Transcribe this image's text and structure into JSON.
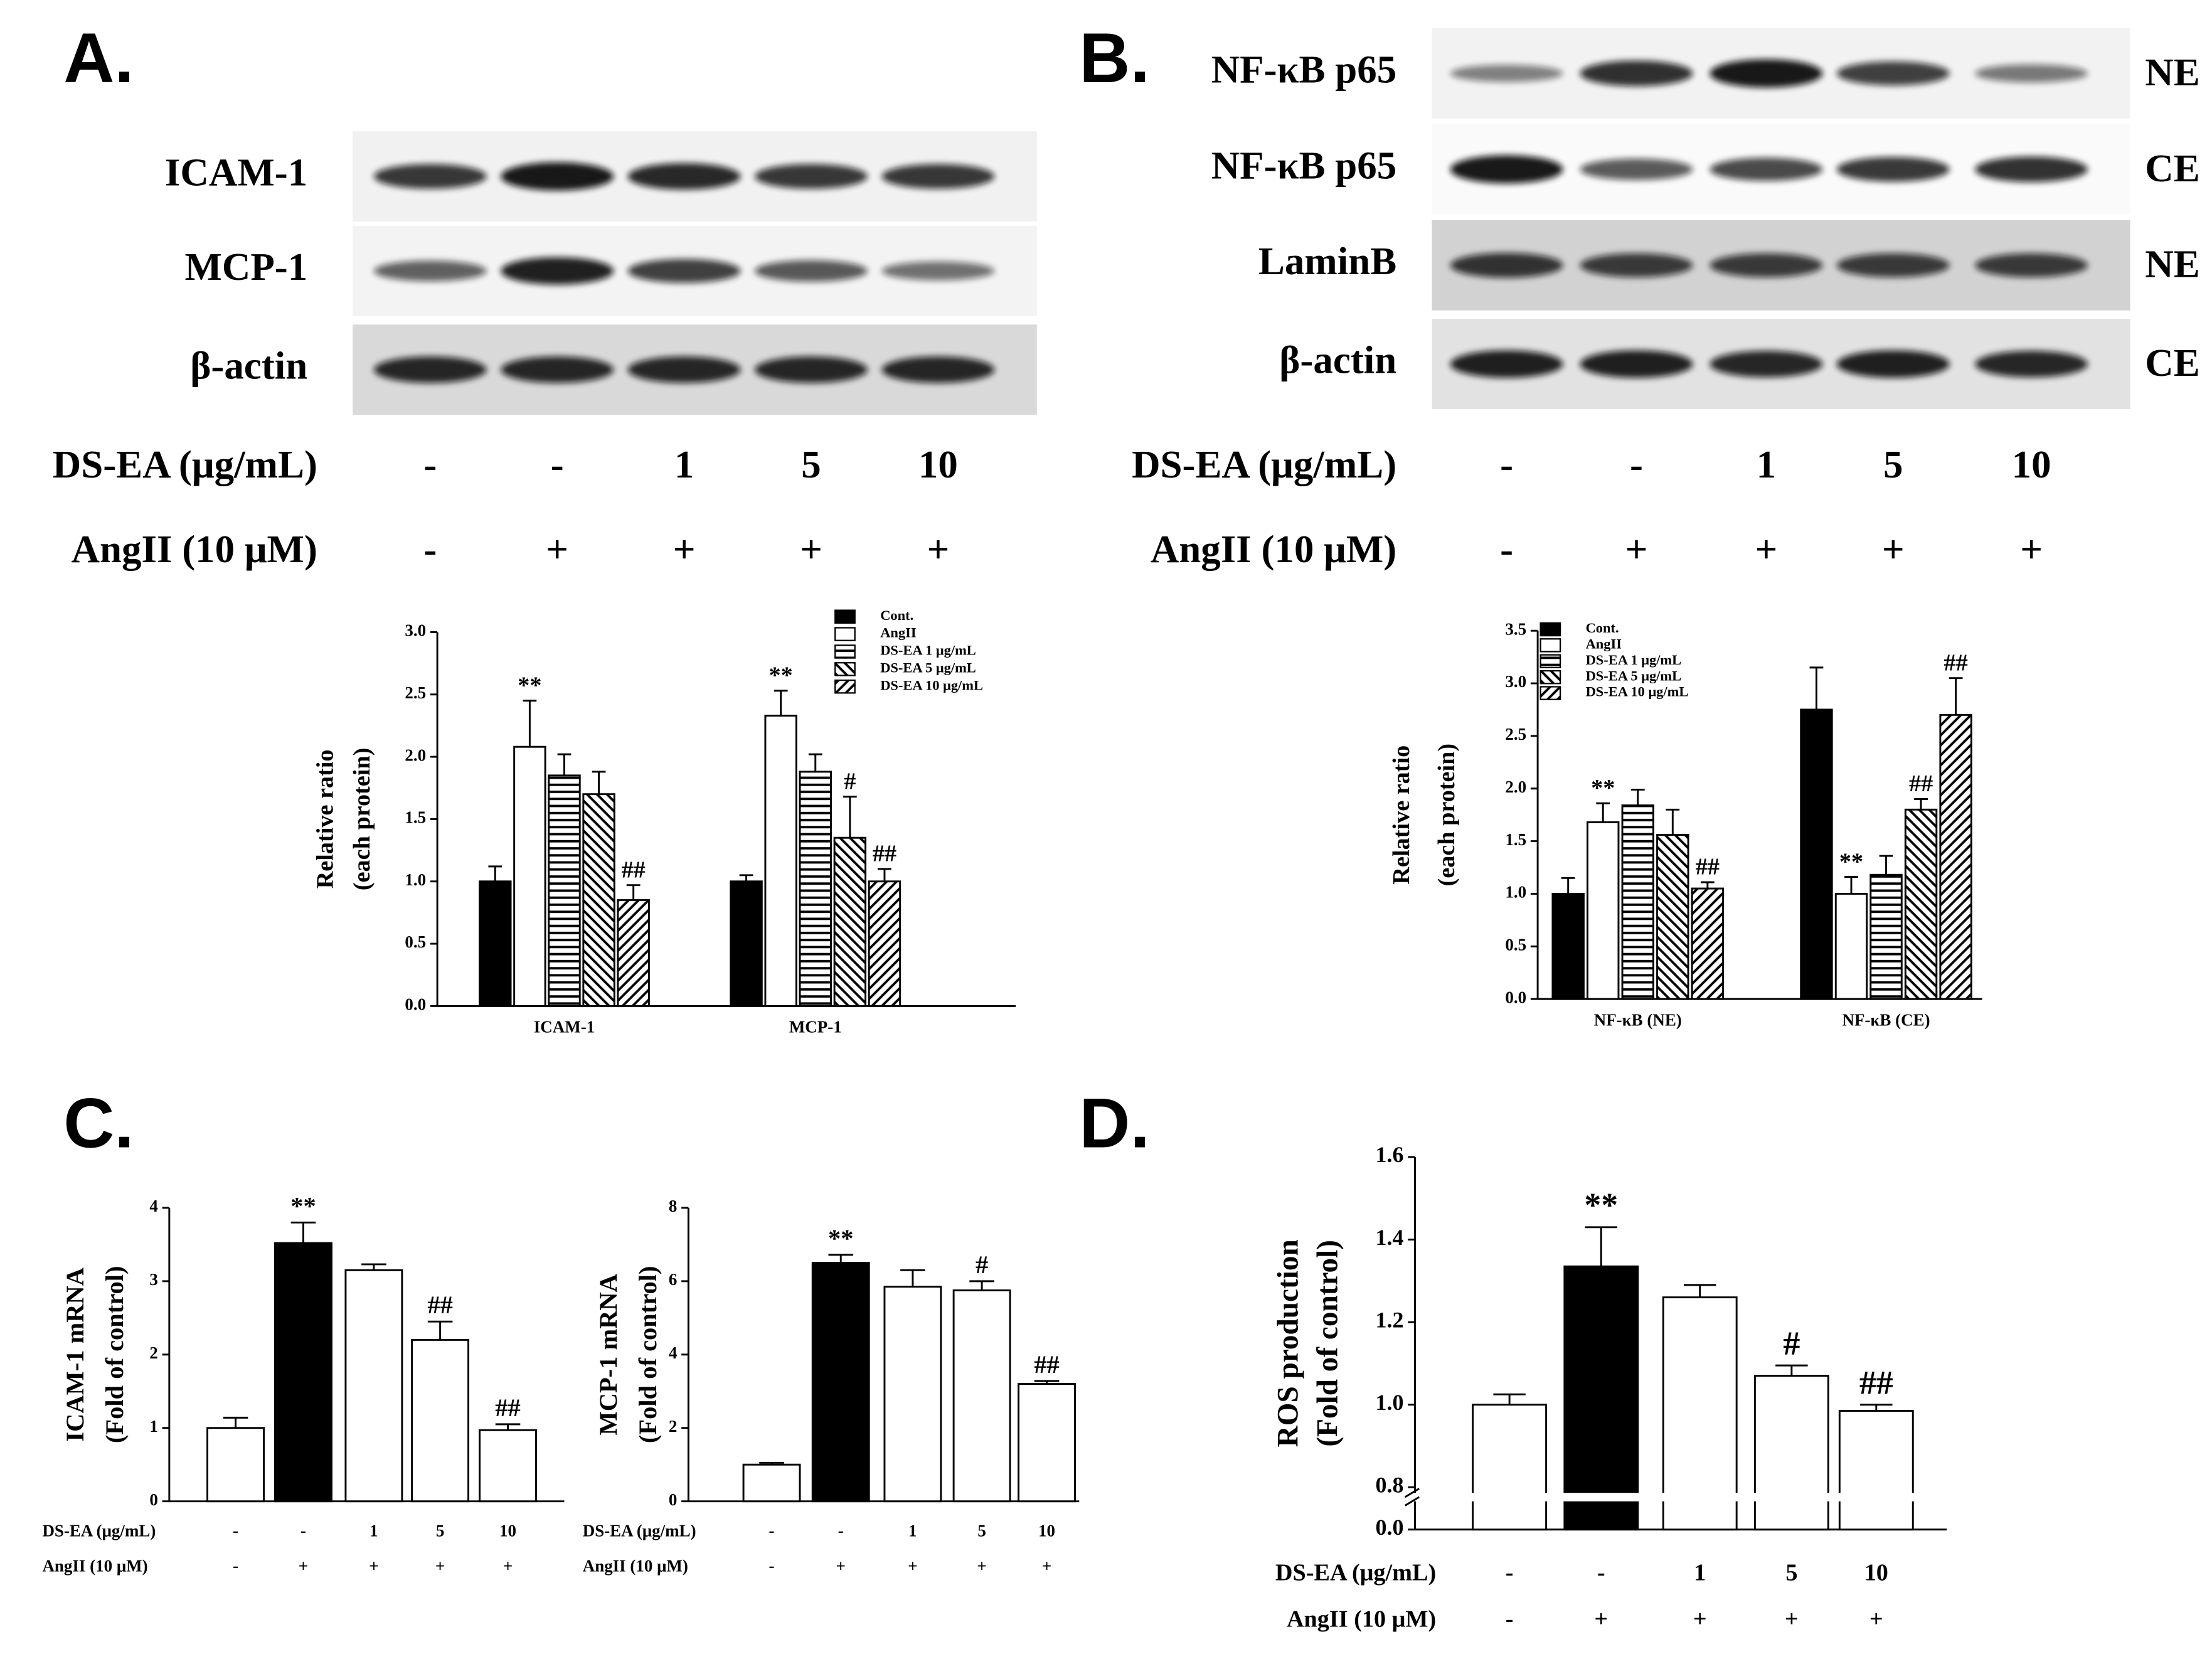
{
  "panels": [
    "A.",
    "B.",
    "C.",
    "D."
  ],
  "blots": [
    {
      "rows": [
        "ICAM-1",
        "MCP-1",
        "β-actin"
      ],
      "treatments": [
        {
          "label": "DS-EA (μg/mL)",
          "values": [
            "-",
            "-",
            "1",
            "5",
            "10"
          ]
        },
        {
          "label": "AngII (10 μM)",
          "values": [
            "-",
            "+",
            "+",
            "+",
            "+"
          ]
        }
      ]
    },
    {
      "rows": [
        "NF-κB p65",
        "NF-κB p65",
        "LaminB",
        "β-actin"
      ],
      "fractions": [
        "NE",
        "CE",
        "NE",
        "CE"
      ],
      "treatments": [
        {
          "label": "DS-EA (μg/mL)",
          "values": [
            "-",
            "-",
            "1",
            "5",
            "10"
          ]
        },
        {
          "label": "AngII (10 μM)",
          "values": [
            "-",
            "+",
            "+",
            "+",
            "+"
          ]
        }
      ]
    }
  ],
  "chart_data": [
    {
      "type": "bar",
      "categories": [
        "ICAM-1",
        "MCP-1"
      ],
      "ylabel": [
        "Relative ratio",
        "(each protein)"
      ],
      "ylim": [
        0,
        3
      ],
      "yticks": [
        {
          "value": 0,
          "label": "0.0"
        },
        0.5,
        {
          "value": 1,
          "label": "1.0"
        },
        1.5,
        {
          "value": 2,
          "label": "2.0"
        },
        2.5,
        {
          "value": 3,
          "label": "3.0"
        }
      ],
      "series": [
        {
          "name": "Cont.",
          "color": "#000000",
          "values": [
            1.0,
            1.0
          ],
          "errors": [
            0.12,
            0.05
          ],
          "annotations": [
            null,
            null
          ]
        },
        {
          "name": "AngII",
          "color": "#ffffff",
          "values": [
            2.08,
            2.33
          ],
          "errors": [
            0.37,
            0.2
          ],
          "annotations": [
            "**",
            "**"
          ]
        },
        {
          "name": "DS-EA 1 μg/mL",
          "color": "#ffffff",
          "pattern": "horizontal",
          "values": [
            1.85,
            1.88
          ],
          "errors": [
            0.17,
            0.14
          ],
          "annotations": [
            null,
            null
          ]
        },
        {
          "name": "DS-EA 5 μg/mL",
          "color": "#ffffff",
          "pattern": "diagonal-down",
          "values": [
            1.7,
            1.35
          ],
          "errors": [
            0.18,
            0.33
          ],
          "annotations": [
            null,
            "#"
          ]
        },
        {
          "name": "DS-EA 10 μg/mL",
          "color": "#ffffff",
          "pattern": "diagonal-up",
          "values": [
            0.85,
            1.0
          ],
          "errors": [
            0.12,
            0.1
          ],
          "annotations": [
            "##",
            "##"
          ]
        }
      ]
    },
    {
      "type": "bar",
      "categories": [
        "NF-κB (NE)",
        "NF-κB (CE)"
      ],
      "ylabel": [
        "Relative ratio",
        "(each protein)"
      ],
      "ylim": [
        0,
        3.5
      ],
      "yticks": [
        {
          "value": 0,
          "label": "0.0"
        },
        0.5,
        {
          "value": 1,
          "label": "1.0"
        },
        1.5,
        {
          "value": 2,
          "label": "2.0"
        },
        2.5,
        {
          "value": 3,
          "label": "3.0"
        },
        3.5
      ],
      "series": [
        {
          "name": "Cont.",
          "color": "#000000",
          "values": [
            1.0,
            2.75
          ],
          "errors": [
            0.15,
            0.4
          ],
          "annotations": [
            null,
            null
          ]
        },
        {
          "name": "AngII",
          "color": "#ffffff",
          "values": [
            1.68,
            1.0
          ],
          "errors": [
            0.18,
            0.16
          ],
          "annotations": [
            "**",
            "**"
          ]
        },
        {
          "name": "DS-EA 1 μg/mL",
          "color": "#ffffff",
          "pattern": "horizontal",
          "values": [
            1.84,
            1.18
          ],
          "errors": [
            0.15,
            0.18
          ],
          "annotations": [
            null,
            null
          ]
        },
        {
          "name": "DS-EA 5 μg/mL",
          "color": "#ffffff",
          "pattern": "diagonal-down",
          "values": [
            1.56,
            1.8
          ],
          "errors": [
            0.24,
            0.1
          ],
          "annotations": [
            null,
            "##"
          ]
        },
        {
          "name": "DS-EA 10 μg/mL",
          "color": "#ffffff",
          "pattern": "diagonal-up",
          "values": [
            1.05,
            2.7
          ],
          "errors": [
            0.06,
            0.35
          ],
          "annotations": [
            "##",
            "##"
          ]
        }
      ]
    },
    {
      "type": "bar",
      "ylabel": [
        "ICAM-1 mRNA",
        "(Fold of control)"
      ],
      "ylim": [
        0,
        4
      ],
      "yticks": [
        0,
        1,
        2,
        3,
        4
      ],
      "values": [
        1.0,
        3.52,
        3.15,
        2.2,
        0.97
      ],
      "errors": [
        0.14,
        0.28,
        0.08,
        0.25,
        0.08
      ],
      "colors": [
        "#ffffff",
        "#000000",
        "#ffffff",
        "#ffffff",
        "#ffffff"
      ],
      "annotations": [
        null,
        "**",
        null,
        "##",
        "##"
      ],
      "treatments": [
        {
          "label": "DS-EA (μg/mL)",
          "values": [
            "-",
            "-",
            "1",
            "5",
            "10"
          ]
        },
        {
          "label": "AngII (10 μM)",
          "values": [
            "-",
            "+",
            "+",
            "+",
            "+"
          ]
        }
      ]
    },
    {
      "type": "bar",
      "ylabel": [
        "MCP-1 mRNA",
        "(Fold of control)"
      ],
      "ylim": [
        0,
        8
      ],
      "yticks": [
        0,
        2,
        4,
        6,
        8
      ],
      "values": [
        1.0,
        6.5,
        5.85,
        5.75,
        3.2
      ],
      "errors": [
        0.05,
        0.22,
        0.45,
        0.25,
        0.08
      ],
      "colors": [
        "#ffffff",
        "#000000",
        "#ffffff",
        "#ffffff",
        "#ffffff"
      ],
      "annotations": [
        null,
        "**",
        null,
        "#",
        "##"
      ],
      "treatments": [
        {
          "label": "DS-EA (μg/mL)",
          "values": [
            "-",
            "-",
            "1",
            "5",
            "10"
          ]
        },
        {
          "label": "AngII (10 μM)",
          "values": [
            "-",
            "+",
            "+",
            "+",
            "+"
          ]
        }
      ]
    },
    {
      "type": "bar",
      "ylabel": [
        "ROS production",
        "(Fold of control)"
      ],
      "ylim": [
        0,
        1.6
      ],
      "axis_break": [
        0,
        0.8
      ],
      "yticks": [
        {
          "value": 0,
          "label": "0.0"
        },
        0.8,
        {
          "value": 1,
          "label": "1.0"
        },
        1.2,
        1.4,
        1.6
      ],
      "values": [
        1.0,
        1.335,
        1.26,
        1.07,
        0.985
      ],
      "errors": [
        0.025,
        0.095,
        0.03,
        0.025,
        0.015
      ],
      "colors": [
        "#ffffff",
        "#000000",
        "#ffffff",
        "#ffffff",
        "#ffffff"
      ],
      "annotations": [
        null,
        "**",
        null,
        "#",
        "##"
      ],
      "treatments": [
        {
          "label": "DS-EA (μg/mL)",
          "values": [
            "-",
            "-",
            "1",
            "5",
            "10"
          ]
        },
        {
          "label": "AngII (10 μM)",
          "values": [
            "-",
            "+",
            "+",
            "+",
            "+"
          ]
        }
      ]
    }
  ]
}
